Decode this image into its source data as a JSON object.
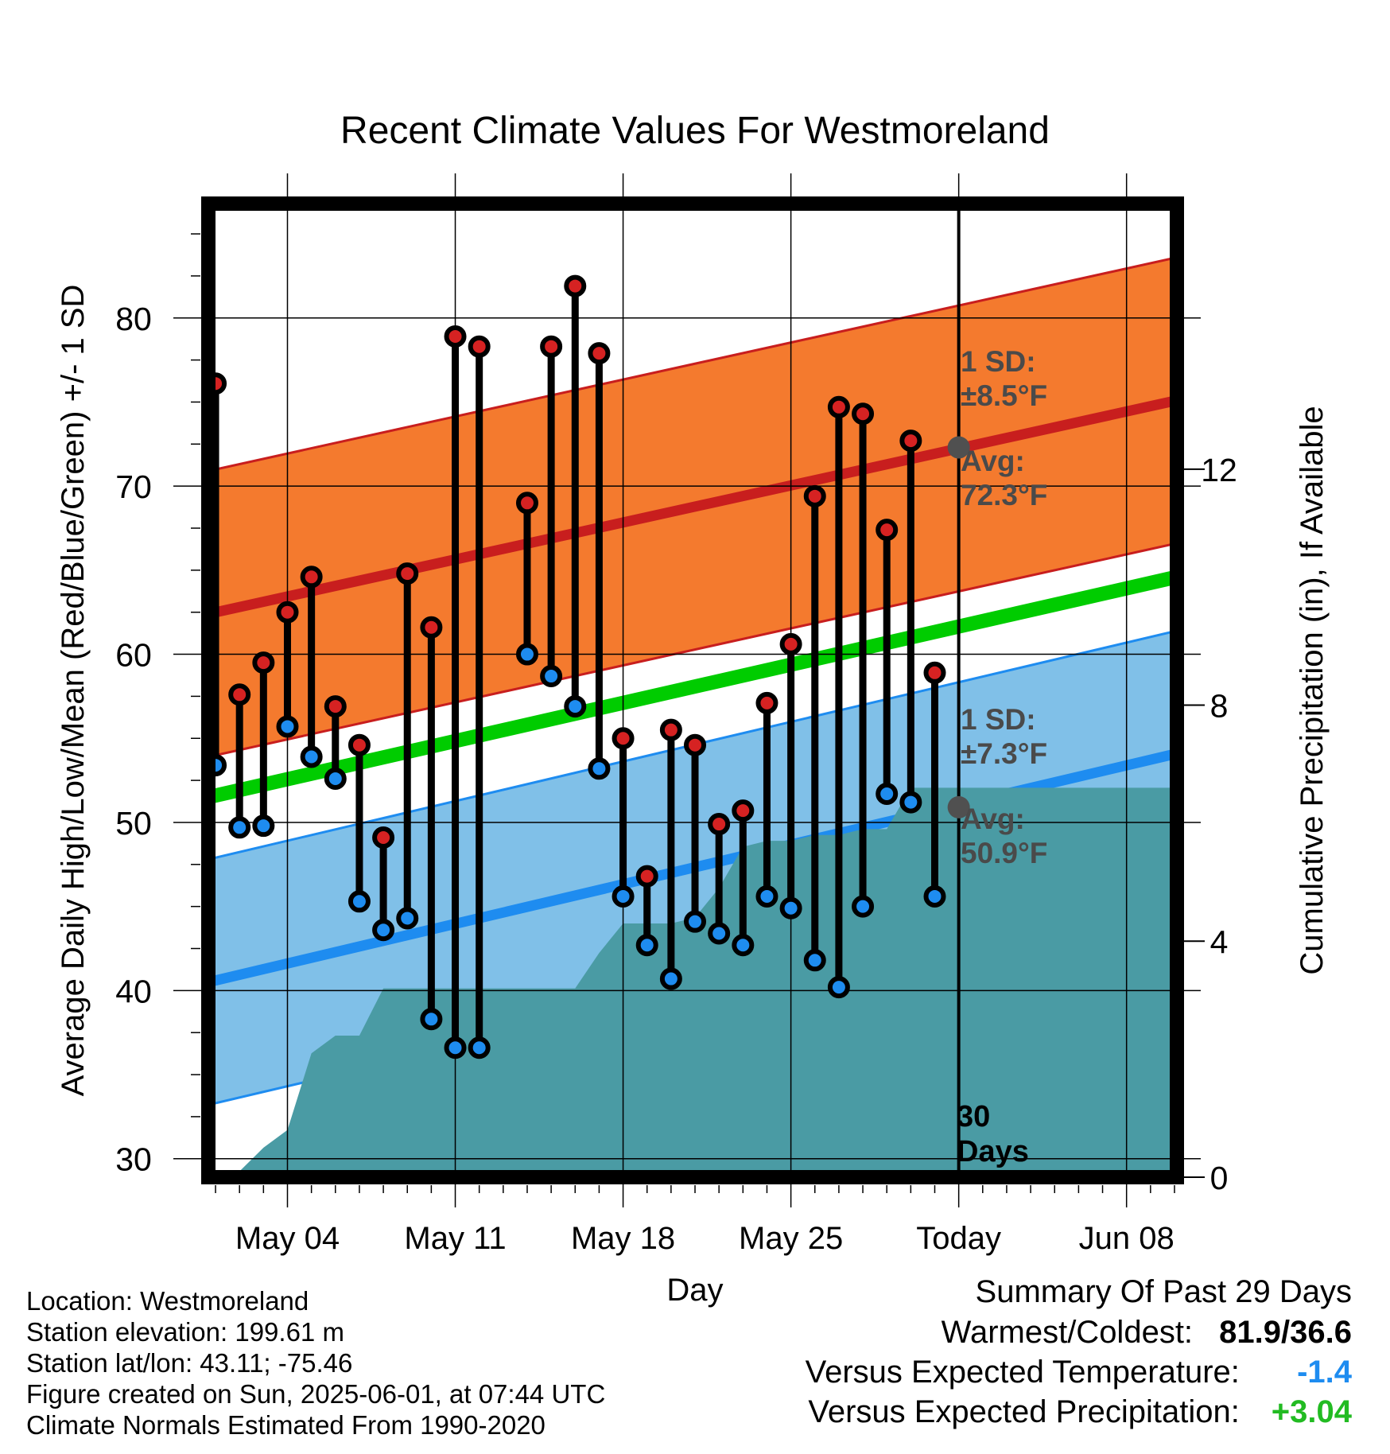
{
  "chart_data": {
    "type": "line",
    "title": "Recent Climate Values For Westmoreland",
    "xlabel": "Day",
    "ylabel_left": "Average Daily High/Low/Mean (Red/Blue/Green) +/- 1 SD",
    "ylabel_right": "Cumulative Precipitation (in), If Available",
    "x_tick_labels": [
      "May 04",
      "May 11",
      "May 18",
      "May 25",
      "Today",
      "Jun 08"
    ],
    "x_tick_days": [
      4,
      11,
      18,
      25,
      32,
      39
    ],
    "xlim_days": [
      0.7,
      41.1
    ],
    "today_day": 32,
    "ylim_left": [
      28.9,
      86.8
    ],
    "y_ticks_left": [
      30,
      40,
      50,
      60,
      70,
      80
    ],
    "ylim_right": [
      0,
      16.5
    ],
    "y_ticks_right": [
      0,
      4,
      8,
      12
    ],
    "colors": {
      "high": "#d62222",
      "low": "#1e8cf0",
      "mean": "#00cc00",
      "high_band": "#f47a2e",
      "low_band": "#80c0e8",
      "precip": "#4a9ba4"
    },
    "normals": {
      "x": [
        0.7,
        41.1
      ],
      "high_avg": [
        62.4,
        75.1
      ],
      "low_avg": [
        40.5,
        54.1
      ],
      "mean_avg": [
        51.5,
        64.6
      ],
      "high_sd": 8.5,
      "low_sd": 7.3
    },
    "series": [
      {
        "name": "High",
        "x": [
          1,
          2,
          3,
          4,
          5,
          6,
          7,
          8,
          9,
          10,
          11,
          12,
          14,
          15,
          16,
          17,
          18,
          19,
          20,
          21,
          22,
          23,
          24,
          25,
          26,
          27,
          28,
          29,
          30,
          31
        ],
        "values": [
          76.1,
          57.6,
          59.5,
          62.5,
          64.6,
          56.9,
          54.6,
          49.1,
          64.8,
          61.6,
          78.9,
          78.3,
          69.0,
          78.3,
          81.9,
          77.9,
          55.0,
          46.8,
          55.5,
          54.6,
          49.9,
          50.7,
          57.1,
          60.6,
          69.4,
          74.7,
          74.3,
          67.4,
          72.7,
          58.9
        ]
      },
      {
        "name": "Low",
        "x": [
          1,
          2,
          3,
          4,
          5,
          6,
          7,
          8,
          9,
          10,
          11,
          12,
          14,
          15,
          16,
          17,
          18,
          19,
          20,
          21,
          22,
          23,
          24,
          25,
          26,
          27,
          28,
          29,
          30,
          31
        ],
        "values": [
          53.4,
          49.7,
          49.8,
          55.7,
          53.9,
          52.6,
          45.3,
          43.6,
          44.3,
          38.3,
          36.6,
          36.6,
          60.0,
          58.7,
          56.9,
          53.2,
          45.6,
          42.7,
          40.7,
          44.1,
          43.4,
          42.7,
          45.6,
          44.9,
          41.8,
          40.2,
          45.0,
          51.7,
          51.2,
          45.6
        ]
      }
    ],
    "precip": {
      "x": [
        1.0,
        2.0,
        3.0,
        4.0,
        5.0,
        6.0,
        7.0,
        8.0,
        9.0,
        10.0,
        11.0,
        12.0,
        13.0,
        14.0,
        15.0,
        16.0,
        17.0,
        18.0,
        19.0,
        20.0,
        21.0,
        22.0,
        23.0,
        24.0,
        25.0,
        26.0,
        27.0,
        28.0,
        29.0,
        30.0,
        31.0,
        32.0,
        41.1
      ],
      "values": [
        0.0,
        0.1,
        0.5,
        0.8,
        2.1,
        2.4,
        2.4,
        3.2,
        3.2,
        3.2,
        3.2,
        3.2,
        3.2,
        3.2,
        3.2,
        3.2,
        3.8,
        4.3,
        4.3,
        4.3,
        4.4,
        4.9,
        5.6,
        5.7,
        5.7,
        5.8,
        5.8,
        5.9,
        5.9,
        6.6,
        6.6,
        6.6,
        6.6
      ]
    },
    "annotations": {
      "high_sd_line1": "1 SD:",
      "high_sd_line2": "±8.5°F",
      "high_avg_line1": "Avg:",
      "high_avg_line2": "72.3°F",
      "low_sd_line1": "1 SD:",
      "low_sd_line2": "±7.3°F",
      "low_avg_line1": "Avg:",
      "low_avg_line2": "50.9°F",
      "today_avg_high": 72.3,
      "today_avg_low": 50.9,
      "days_line1": "30",
      "days_line2": "Days"
    }
  },
  "info": {
    "location": "Location: Westmoreland",
    "elevation": "Station elevation: 199.61 m",
    "latlon": "Station lat/lon: 43.11; -75.46",
    "created": "Figure created on Sun, 2025-06-01, at 07:44 UTC",
    "normals": "Climate Normals Estimated From 1990-2020"
  },
  "summary": {
    "title": "Summary Of Past 29 Days",
    "warm_cold_label": "Warmest/Coldest:",
    "warm_cold_value": "81.9/36.6",
    "temp_label": "Versus Expected Temperature:",
    "temp_value": "-1.4",
    "temp_color": "#1e8cf0",
    "precip_label": "Versus Expected Precipitation:",
    "precip_value": "+3.04",
    "precip_color": "#22bb22"
  }
}
